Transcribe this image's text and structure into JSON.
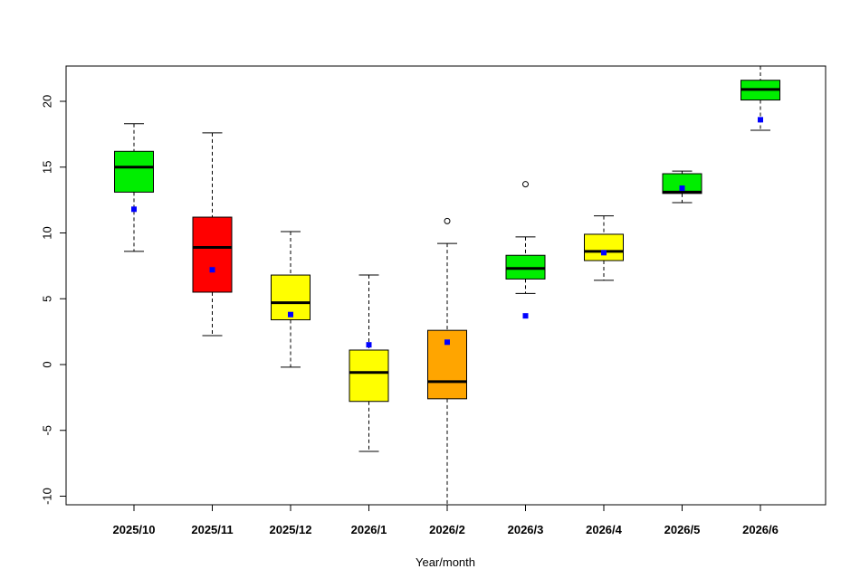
{
  "chart_data": {
    "type": "boxplot",
    "xlabel": "Year/month",
    "ylabel": "",
    "ylim": [
      -10.8,
      22.7
    ],
    "yticks": [
      -10,
      -5,
      0,
      5,
      10,
      15,
      20
    ],
    "grid": false,
    "categories": [
      "2025/10",
      "2025/11",
      "2025/12",
      "2026/1",
      "2026/2",
      "2026/3",
      "2026/4",
      "2026/5",
      "2026/6"
    ],
    "boxes": [
      {
        "category": "2025/10",
        "whisker_low": 8.6,
        "q1": 13.1,
        "median": 15.0,
        "q3": 16.2,
        "whisker_high": 18.3,
        "mean": 11.8,
        "outliers": [],
        "color": "#00ee00"
      },
      {
        "category": "2025/11",
        "whisker_low": 2.2,
        "q1": 5.5,
        "median": 8.9,
        "q3": 11.2,
        "whisker_high": 17.6,
        "mean": 7.2,
        "outliers": [],
        "color": "#ff0000"
      },
      {
        "category": "2025/12",
        "whisker_low": -0.2,
        "q1": 3.4,
        "median": 4.7,
        "q3": 6.8,
        "whisker_high": 10.1,
        "mean": 3.8,
        "outliers": [],
        "color": "#ffff00"
      },
      {
        "category": "2026/1",
        "whisker_low": -6.6,
        "q1": -2.8,
        "median": -0.6,
        "q3": 1.1,
        "whisker_high": 6.8,
        "mean": 1.5,
        "outliers": [],
        "color": "#ffff00"
      },
      {
        "category": "2026/2",
        "whisker_low": -10.8,
        "q1": -2.6,
        "median": -1.3,
        "q3": 2.6,
        "whisker_high": 9.2,
        "mean": 1.7,
        "outliers": [
          10.9
        ],
        "color": "#ffa500"
      },
      {
        "category": "2026/3",
        "whisker_low": 5.4,
        "q1": 6.5,
        "median": 7.3,
        "q3": 8.3,
        "whisker_high": 9.7,
        "mean": 3.7,
        "outliers": [
          13.7
        ],
        "color": "#00ee00"
      },
      {
        "category": "2026/4",
        "whisker_low": 6.4,
        "q1": 7.9,
        "median": 8.6,
        "q3": 9.9,
        "whisker_high": 11.3,
        "mean": 8.5,
        "outliers": [],
        "color": "#ffff00"
      },
      {
        "category": "2026/5",
        "whisker_low": 12.3,
        "q1": 13.0,
        "median": 13.1,
        "q3": 14.5,
        "whisker_high": 14.7,
        "mean": 13.4,
        "outliers": [],
        "color": "#00ee00"
      },
      {
        "category": "2026/6",
        "whisker_low": 17.8,
        "q1": 20.1,
        "median": 20.9,
        "q3": 21.6,
        "whisker_high": 22.7,
        "mean": 18.6,
        "outliers": [],
        "color": "#00ee00"
      }
    ],
    "mean_marker_color": "#0000ff"
  }
}
